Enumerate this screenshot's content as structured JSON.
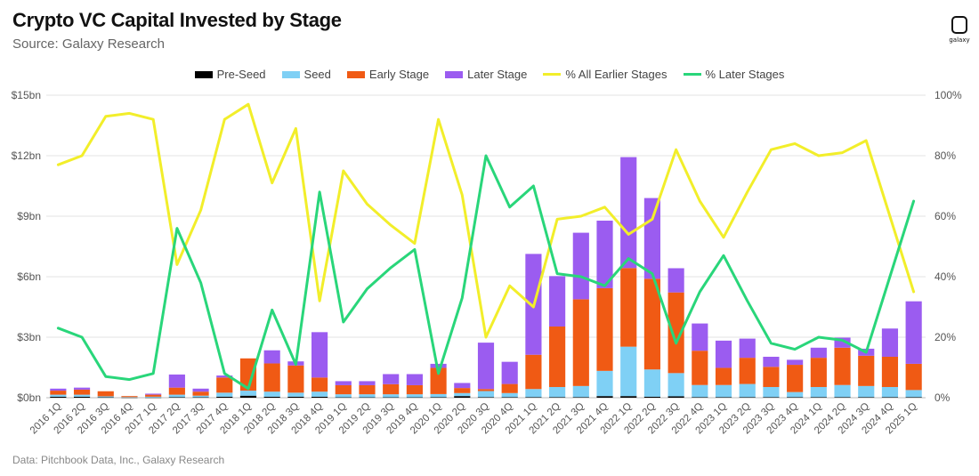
{
  "header": {
    "title": "Crypto VC Capital Invested by Stage",
    "subtitle": "Source: Galaxy Research",
    "logo_text": "galaxy"
  },
  "footer": {
    "note": "Data: Pitchbook Data, Inc., Galaxy Research"
  },
  "colors": {
    "pre_seed": "#000000",
    "seed": "#7fd0f5",
    "early": "#f05a14",
    "later": "#9b5cf0",
    "pct_earlier": "#f2ee2a",
    "pct_later": "#29d67a",
    "grid": "#e3e3e3"
  },
  "chart_data": {
    "type": "bar",
    "title": "Crypto VC Capital Invested by Stage",
    "subtitle": "Source: Galaxy Research",
    "categories": [
      "2016 1Q",
      "2016 2Q",
      "2016 3Q",
      "2016 4Q",
      "2017 1Q",
      "2017 2Q",
      "2017 3Q",
      "2017 4Q",
      "2018 1Q",
      "2018 2Q",
      "2018 3Q",
      "2018 4Q",
      "2019 1Q",
      "2019 2Q",
      "2019 3Q",
      "2019 4Q",
      "2020 1Q",
      "2020 2Q",
      "2020 3Q",
      "2020 4Q",
      "2021 1Q",
      "2021 2Q",
      "2021 3Q",
      "2021 4Q",
      "2022 1Q",
      "2022 2Q",
      "2022 3Q",
      "2022 4Q",
      "2023 1Q",
      "2023 2Q",
      "2023 3Q",
      "2023 4Q",
      "2024 1Q",
      "2024 2Q",
      "2024 3Q",
      "2024 4Q",
      "2025 1Q"
    ],
    "series": [
      {
        "name": "Pre-Seed",
        "kind": "bar",
        "axis": "left",
        "values": [
          0.05,
          0.05,
          0.02,
          0.01,
          0.01,
          0.03,
          0.02,
          0.05,
          0.1,
          0.05,
          0.05,
          0.05,
          0.02,
          0.02,
          0.02,
          0.02,
          0.03,
          0.08,
          0.03,
          0.03,
          0.03,
          0.03,
          0.03,
          0.08,
          0.08,
          0.05,
          0.07,
          0.03,
          0.03,
          0.03,
          0.03,
          0.03,
          0.03,
          0.03,
          0.03,
          0.03,
          0.03
        ]
      },
      {
        "name": "Seed",
        "kind": "bar",
        "axis": "left",
        "values": [
          0.1,
          0.1,
          0.05,
          0.02,
          0.04,
          0.12,
          0.08,
          0.2,
          0.25,
          0.25,
          0.2,
          0.25,
          0.15,
          0.15,
          0.15,
          0.15,
          0.15,
          0.15,
          0.3,
          0.2,
          0.4,
          0.5,
          0.55,
          1.25,
          2.45,
          1.35,
          1.15,
          0.6,
          0.6,
          0.65,
          0.5,
          0.25,
          0.5,
          0.6,
          0.55,
          0.5,
          0.35
        ]
      },
      {
        "name": "Early Stage",
        "kind": "bar",
        "axis": "left",
        "values": [
          0.2,
          0.25,
          0.25,
          0.05,
          0.1,
          0.35,
          0.2,
          0.75,
          1.6,
          1.4,
          1.35,
          0.7,
          0.45,
          0.45,
          0.5,
          0.45,
          1.3,
          0.25,
          0.1,
          0.45,
          1.7,
          3.0,
          4.3,
          4.1,
          3.9,
          4.5,
          4.0,
          1.7,
          0.85,
          1.3,
          1.0,
          1.35,
          1.45,
          1.85,
          1.5,
          1.5,
          1.3
        ]
      },
      {
        "name": "Later Stage",
        "kind": "bar",
        "axis": "left",
        "values": [
          0.1,
          0.1,
          0.0,
          0.0,
          0.05,
          0.65,
          0.15,
          0.1,
          0.0,
          0.65,
          0.2,
          2.25,
          0.2,
          0.2,
          0.5,
          0.55,
          0.2,
          0.25,
          2.3,
          1.1,
          5.0,
          2.5,
          3.3,
          3.35,
          5.5,
          4.0,
          1.2,
          1.35,
          1.35,
          0.95,
          0.5,
          0.25,
          0.5,
          0.5,
          0.35,
          1.4,
          3.1
        ]
      },
      {
        "name": "% All Earlier Stages",
        "kind": "line",
        "axis": "right",
        "values": [
          77,
          80,
          93,
          94,
          92,
          44,
          62,
          92,
          97,
          71,
          89,
          32,
          75,
          64,
          57,
          51,
          92,
          67,
          20,
          37,
          30,
          59,
          60,
          63,
          54,
          59,
          82,
          65,
          53,
          68,
          82,
          84,
          80,
          81,
          85,
          60,
          35
        ]
      },
      {
        "name": "% Later Stages",
        "kind": "line",
        "axis": "right",
        "values": [
          23,
          20,
          7,
          6,
          8,
          56,
          38,
          8,
          3,
          29,
          11,
          68,
          25,
          36,
          43,
          49,
          8,
          33,
          80,
          63,
          70,
          41,
          40,
          37,
          46,
          41,
          18,
          35,
          47,
          32,
          18,
          16,
          20,
          19,
          15,
          40,
          65
        ]
      }
    ],
    "left_axis": {
      "min": 0,
      "max": 15,
      "ticks": [
        "$0bn",
        "$3bn",
        "$6bn",
        "$9bn",
        "$12bn",
        "$15bn"
      ],
      "tick_values": [
        0,
        3,
        6,
        9,
        12,
        15
      ]
    },
    "right_axis": {
      "min": 0,
      "max": 100,
      "ticks": [
        "0%",
        "20%",
        "40%",
        "60%",
        "80%",
        "100%"
      ],
      "tick_values": [
        0,
        20,
        40,
        60,
        80,
        100
      ]
    },
    "stacked": true,
    "grid": true,
    "legend_position": "top"
  }
}
